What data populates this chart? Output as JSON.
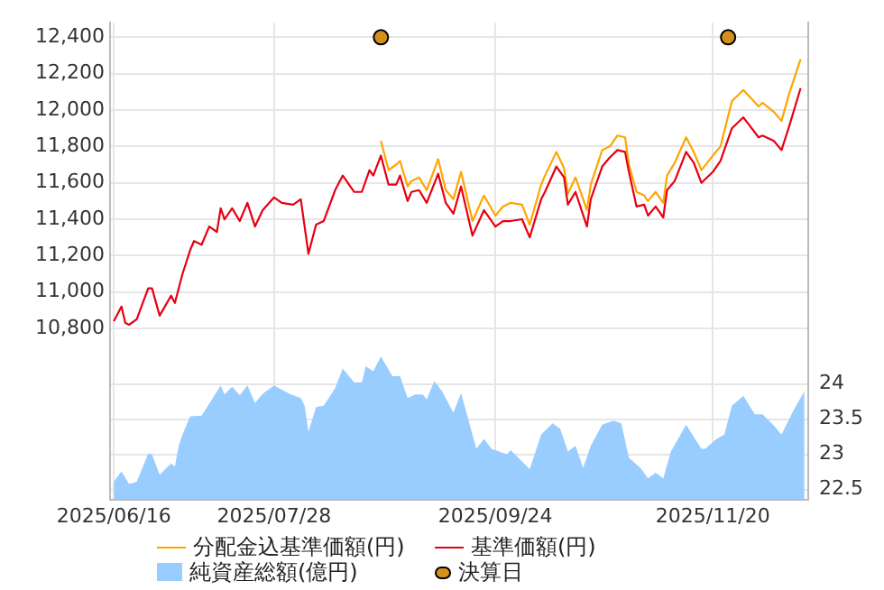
{
  "chart_data": {
    "type": "line",
    "x": [
      "2025-06-16",
      "2025-06-18",
      "2025-06-19",
      "2025-06-20",
      "2025-06-22",
      "2025-06-25",
      "2025-06-26",
      "2025-06-28",
      "2025-07-01",
      "2025-07-02",
      "2025-07-04",
      "2025-07-06",
      "2025-07-07",
      "2025-07-09",
      "2025-07-11",
      "2025-07-13",
      "2025-07-14",
      "2025-07-15",
      "2025-07-17",
      "2025-07-19",
      "2025-07-21",
      "2025-07-23",
      "2025-07-25",
      "2025-07-28",
      "2025-07-30",
      "2025-08-02",
      "2025-08-04",
      "2025-08-05",
      "2025-08-06",
      "2025-08-08",
      "2025-08-10",
      "2025-08-13",
      "2025-08-15",
      "2025-08-18",
      "2025-08-20",
      "2025-08-22",
      "2025-08-23",
      "2025-08-25",
      "2025-08-27",
      "2025-08-29",
      "2025-08-30",
      "2025-09-01",
      "2025-09-02",
      "2025-09-04",
      "2025-09-06",
      "2025-09-09",
      "2025-09-11",
      "2025-09-13",
      "2025-09-15",
      "2025-09-18",
      "2025-09-21",
      "2025-09-24",
      "2025-09-26",
      "2025-09-28",
      "2025-10-01",
      "2025-10-03",
      "2025-10-06",
      "2025-10-07",
      "2025-10-10",
      "2025-10-12",
      "2025-10-13",
      "2025-10-15",
      "2025-10-18",
      "2025-10-19",
      "2025-10-22",
      "2025-10-24",
      "2025-10-26",
      "2025-10-28",
      "2025-10-29",
      "2025-10-31",
      "2025-11-02",
      "2025-11-03",
      "2025-11-05",
      "2025-11-07",
      "2025-11-08",
      "2025-11-10",
      "2025-11-13",
      "2025-11-15",
      "2025-11-17",
      "2025-11-20",
      "2025-11-22",
      "2025-11-25",
      "2025-11-28",
      "2025-12-02",
      "2025-12-03",
      "2025-12-06",
      "2025-12-08",
      "2025-12-10",
      "2025-12-13"
    ],
    "series": [
      {
        "name": "分配金込基準価額(円)",
        "type": "line",
        "color": "#ffa500",
        "values": [
          null,
          null,
          null,
          null,
          null,
          null,
          null,
          null,
          null,
          null,
          null,
          null,
          null,
          null,
          null,
          null,
          null,
          null,
          null,
          null,
          null,
          null,
          null,
          null,
          null,
          null,
          null,
          null,
          null,
          null,
          null,
          null,
          null,
          null,
          null,
          null,
          null,
          11830,
          11670,
          11700,
          11720,
          11580,
          11610,
          11630,
          11560,
          11730,
          11560,
          11510,
          11660,
          11390,
          11530,
          11420,
          11470,
          11490,
          11480,
          11370,
          11590,
          11640,
          11770,
          11680,
          11540,
          11630,
          11450,
          11590,
          11780,
          11800,
          11860,
          11850,
          11700,
          11550,
          11530,
          11500,
          11550,
          11490,
          11640,
          11710,
          11850,
          11770,
          11670,
          11750,
          11800,
          12050,
          12110,
          12020,
          12040,
          11990,
          11940,
          12090,
          12280
        ]
      },
      {
        "name": "基準価額(円)",
        "type": "line",
        "color": "#e60012",
        "values": [
          10840,
          10920,
          10830,
          10820,
          10850,
          11020,
          11020,
          10870,
          10980,
          10940,
          11100,
          11230,
          11280,
          11260,
          11360,
          11330,
          11460,
          11400,
          11460,
          11390,
          11490,
          11360,
          11450,
          11520,
          11490,
          11480,
          11510,
          11360,
          11210,
          11370,
          11390,
          11560,
          11640,
          11550,
          11550,
          11670,
          11640,
          11750,
          11590,
          11590,
          11640,
          11500,
          11550,
          11560,
          11490,
          11650,
          11490,
          11430,
          11580,
          11310,
          11450,
          11360,
          11390,
          11390,
          11400,
          11300,
          11510,
          11550,
          11690,
          11630,
          11480,
          11550,
          11360,
          11510,
          11690,
          11740,
          11780,
          11770,
          11660,
          11470,
          11480,
          11420,
          11470,
          11410,
          11560,
          11610,
          11770,
          11710,
          11600,
          11660,
          11720,
          11900,
          11960,
          11850,
          11860,
          11830,
          11780,
          11910,
          12120
        ]
      },
      {
        "name": "純資産総額(億円)",
        "type": "area",
        "axis": "y2",
        "color": "#99ccff",
        "x": [
          "2025-06-16",
          "2025-06-18",
          "2025-06-20",
          "2025-06-22",
          "2025-06-25",
          "2025-06-26",
          "2025-06-28",
          "2025-07-01",
          "2025-07-02",
          "2025-07-03",
          "2025-07-04",
          "2025-07-06",
          "2025-07-09",
          "2025-07-11",
          "2025-07-14",
          "2025-07-15",
          "2025-07-17",
          "2025-07-19",
          "2025-07-21",
          "2025-07-23",
          "2025-07-25",
          "2025-07-28",
          "2025-08-01",
          "2025-08-04",
          "2025-08-05",
          "2025-08-06",
          "2025-08-08",
          "2025-08-10",
          "2025-08-13",
          "2025-08-15",
          "2025-08-18",
          "2025-08-20",
          "2025-08-21",
          "2025-08-23",
          "2025-08-25",
          "2025-08-28",
          "2025-08-30",
          "2025-09-01",
          "2025-09-03",
          "2025-09-05",
          "2025-09-06",
          "2025-09-08",
          "2025-09-10",
          "2025-09-13",
          "2025-09-15",
          "2025-09-17",
          "2025-09-19",
          "2025-09-21",
          "2025-09-23",
          "2025-09-25",
          "2025-09-27",
          "2025-09-28",
          "2025-10-03",
          "2025-10-06",
          "2025-10-09",
          "2025-10-11",
          "2025-10-13",
          "2025-10-15",
          "2025-10-17",
          "2025-10-19",
          "2025-10-22",
          "2025-10-25",
          "2025-10-27",
          "2025-10-29",
          "2025-11-01",
          "2025-11-03",
          "2025-11-05",
          "2025-11-07",
          "2025-11-09",
          "2025-11-13",
          "2025-11-17",
          "2025-11-18",
          "2025-11-21",
          "2025-11-23",
          "2025-11-25",
          "2025-11-28",
          "2025-12-01",
          "2025-12-03",
          "2025-12-06",
          "2025-12-08",
          "2025-12-11",
          "2025-12-14"
        ],
        "values": [
          22.61,
          22.76,
          22.58,
          22.61,
          23.01,
          23.0,
          22.71,
          22.87,
          22.83,
          23.12,
          23.28,
          23.54,
          23.55,
          23.72,
          23.98,
          23.85,
          23.96,
          23.84,
          23.98,
          23.73,
          23.86,
          23.98,
          23.86,
          23.8,
          23.69,
          23.32,
          23.67,
          23.69,
          23.94,
          24.22,
          24.02,
          24.02,
          24.25,
          24.18,
          24.39,
          24.11,
          24.11,
          23.8,
          23.85,
          23.85,
          23.78,
          24.04,
          23.9,
          23.59,
          23.87,
          23.48,
          23.08,
          23.22,
          23.08,
          23.04,
          23.0,
          23.06,
          22.79,
          23.28,
          23.44,
          23.36,
          23.04,
          23.12,
          22.81,
          23.12,
          23.42,
          23.48,
          23.44,
          22.95,
          22.81,
          22.66,
          22.74,
          22.66,
          23.04,
          23.42,
          23.08,
          23.08,
          23.22,
          23.28,
          23.69,
          23.83,
          23.57,
          23.57,
          23.41,
          23.28,
          23.61,
          23.9
        ]
      },
      {
        "name": "決算日",
        "type": "scatter",
        "color": "#d4901c",
        "marker": "circle",
        "x": [
          "2025-08-25",
          "2025-11-24"
        ],
        "values": [
          12400,
          12400
        ]
      }
    ],
    "xlim": [
      "2025-06-15",
      "2025-12-15"
    ],
    "xticks": [
      {
        "value": "2025-06-16",
        "label": "2025/06/16"
      },
      {
        "value": "2025-07-28",
        "label": "2025/07/28"
      },
      {
        "value": "2025-09-24",
        "label": "2025/09/24"
      },
      {
        "value": "2025-11-20",
        "label": "2025/11/20"
      }
    ],
    "ylim": [
      9860,
      12480
    ],
    "yticks": [
      {
        "value": 10800,
        "label": "10,800"
      },
      {
        "value": 11000,
        "label": "11,000"
      },
      {
        "value": 11200,
        "label": "11,200"
      },
      {
        "value": 11400,
        "label": "11,400"
      },
      {
        "value": 11600,
        "label": "11,600"
      },
      {
        "value": 11800,
        "label": "11,800"
      },
      {
        "value": 12000,
        "label": "12,000"
      },
      {
        "value": 12200,
        "label": "12,200"
      },
      {
        "value": 12400,
        "label": "12,400"
      }
    ],
    "y2lim": [
      22.36,
      29.13
    ],
    "y2ticks": [
      22.5,
      23,
      23.5,
      24
    ],
    "grid": true,
    "legend": "bottom"
  }
}
